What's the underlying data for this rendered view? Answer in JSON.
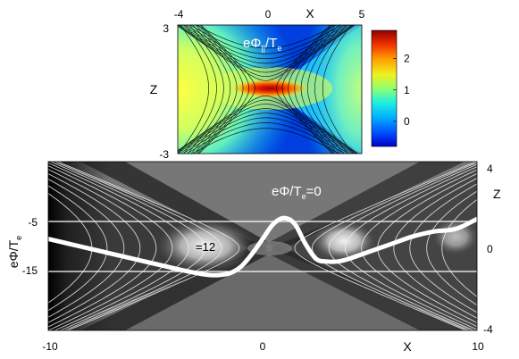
{
  "chart_data": [
    {
      "type": "heatmap",
      "panel": "top",
      "title": "eΦ||/Te",
      "title_main": "eΦ",
      "title_sub": "||",
      "title_den": "/T",
      "title_den_sub": "e",
      "xlabel": "X",
      "ylabel": "Z",
      "xlim": [
        -4,
        5
      ],
      "ylim": [
        -3,
        3
      ],
      "x_ticks": [
        "-4",
        "0",
        "5"
      ],
      "y_ticks": [
        "3",
        "-3"
      ],
      "colorbar": {
        "ticks": [
          "2",
          "1",
          "0"
        ],
        "range": [
          -0.8,
          2.9
        ],
        "colormap": "jet",
        "colors": [
          "#0000c8",
          "#0070ff",
          "#00d0ff",
          "#70ffa0",
          "#f0f020",
          "#ff9000",
          "#e01000",
          "#900000"
        ]
      },
      "description_values": {
        "background_level": -0.5,
        "xline_peak": 2.6,
        "inflow_lobes_level": 1.2
      }
    },
    {
      "type": "line",
      "panel": "bottom",
      "annotation_main": "eΦ/T",
      "annotation_sub": "e",
      "annotation_tail": "=0",
      "annotation2": "=12",
      "xlabel": "X",
      "ylabel_left": "eΦ/T",
      "ylabel_left_sub": "e",
      "ylabel_right": "Z",
      "xlim": [
        -10,
        10
      ],
      "zlim": [
        -4,
        4
      ],
      "x_ticks": [
        "-10",
        "0",
        "10"
      ],
      "z_ticks": [
        "4",
        "0",
        "-4"
      ],
      "phi_ticks": [
        "-5",
        "-15"
      ],
      "phi_lim": [
        0,
        -30
      ],
      "ref_lines_phi": [
        -5,
        -15
      ],
      "series": [
        {
          "x": [
            -10,
            -9,
            -8,
            -7,
            -6,
            -5,
            -4,
            -3,
            -2.5,
            -2,
            -1.5,
            -1,
            -0.5,
            0,
            0.5,
            1,
            1.5,
            2,
            2.5,
            3,
            3.5,
            4,
            5,
            6,
            7,
            8,
            9,
            10
          ],
          "phi": [
            -8.5,
            -9.5,
            -10.5,
            -11.5,
            -12.5,
            -13.5,
            -14.5,
            -15.4,
            -15.7,
            -15.7,
            -15.3,
            -14,
            -11.5,
            -8.5,
            -5.5,
            -4.3,
            -5.5,
            -9.5,
            -12.5,
            -13,
            -13,
            -12.5,
            -11,
            -9.5,
            -8,
            -7,
            -6.5,
            -4.5
          ]
        }
      ],
      "background_colormap": "grayscale"
    }
  ]
}
